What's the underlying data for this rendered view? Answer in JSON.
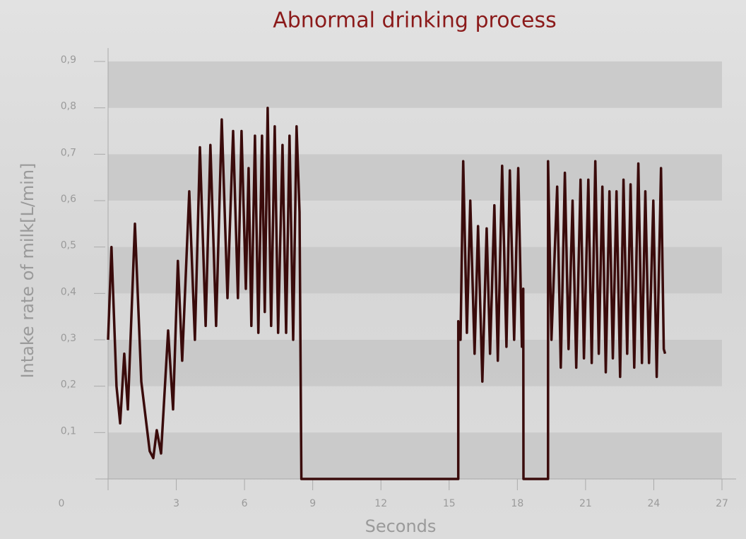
{
  "chart_data": {
    "type": "line",
    "title": "Abnormal drinking process",
    "xlabel": "Seconds",
    "ylabel": "Intake rate of milk[L/min]",
    "xlim": [
      0,
      27
    ],
    "xticks": [
      0,
      3,
      6,
      9,
      12,
      15,
      18,
      21,
      24,
      27
    ],
    "ylim": [
      0,
      0.9
    ],
    "yticks": [
      {
        "value": 0.1,
        "label": "0,1"
      },
      {
        "value": 0.2,
        "label": "0,2"
      },
      {
        "value": 0.3,
        "label": "0,3"
      },
      {
        "value": 0.4,
        "label": "0,4"
      },
      {
        "value": 0.5,
        "label": "0,5"
      },
      {
        "value": 0.6,
        "label": "0,6"
      },
      {
        "value": 0.7,
        "label": "0,7"
      },
      {
        "value": 0.8,
        "label": "0,8"
      },
      {
        "value": 0.9,
        "label": "0,9"
      }
    ],
    "grid": "bands",
    "series": [
      {
        "color": "#3a0b0b",
        "x": [
          0,
          0.15,
          0.37,
          0.53,
          0.71,
          0.87,
          1.18,
          1.46,
          1.83,
          1.99,
          2.14,
          2.33,
          2.64,
          2.86,
          3.07,
          3.26,
          3.57,
          3.82,
          4.04,
          4.29,
          4.5,
          4.75,
          5.0,
          5.25,
          5.5,
          5.71,
          5.87,
          6.06,
          6.18,
          6.3,
          6.46,
          6.61,
          6.77,
          6.89,
          7.02,
          7.17,
          7.33,
          7.48,
          7.67,
          7.83,
          7.98,
          8.14,
          8.29,
          8.42,
          8.5,
          15.4,
          15.4,
          15.5,
          15.62,
          15.78,
          15.93,
          16.12,
          16.27,
          16.46,
          16.65,
          16.8,
          16.99,
          17.14,
          17.33,
          17.52,
          17.67,
          17.86,
          18.04,
          18.2,
          18.26,
          18.27,
          19.35,
          19.35,
          19.5,
          19.75,
          19.91,
          20.09,
          20.25,
          20.43,
          20.59,
          20.78,
          20.93,
          21.12,
          21.27,
          21.43,
          21.58,
          21.74,
          21.89,
          22.05,
          22.2,
          22.36,
          22.52,
          22.67,
          22.83,
          22.98,
          23.14,
          23.32,
          23.48,
          23.63,
          23.79,
          23.98,
          24.13,
          24.32,
          24.44,
          24.5
        ],
        "values": [
          0.3,
          0.5,
          0.2,
          0.12,
          0.27,
          0.15,
          0.55,
          0.21,
          0.06,
          0.045,
          0.105,
          0.055,
          0.32,
          0.15,
          0.47,
          0.255,
          0.62,
          0.3,
          0.715,
          0.33,
          0.72,
          0.33,
          0.775,
          0.39,
          0.75,
          0.39,
          0.75,
          0.41,
          0.67,
          0.33,
          0.74,
          0.315,
          0.74,
          0.36,
          0.8,
          0.33,
          0.76,
          0.315,
          0.72,
          0.315,
          0.74,
          0.3,
          0.76,
          0.575,
          0,
          0,
          0.34,
          0.3,
          0.685,
          0.315,
          0.6,
          0.27,
          0.545,
          0.21,
          0.54,
          0.27,
          0.59,
          0.255,
          0.675,
          0.285,
          0.665,
          0.3,
          0.67,
          0.285,
          0.41,
          0,
          0,
          0.685,
          0.3,
          0.63,
          0.24,
          0.66,
          0.28,
          0.6,
          0.24,
          0.645,
          0.26,
          0.645,
          0.25,
          0.685,
          0.27,
          0.63,
          0.23,
          0.62,
          0.26,
          0.62,
          0.22,
          0.645,
          0.27,
          0.635,
          0.24,
          0.68,
          0.25,
          0.62,
          0.25,
          0.6,
          0.22,
          0.67,
          0.28,
          0.27
        ]
      }
    ]
  }
}
